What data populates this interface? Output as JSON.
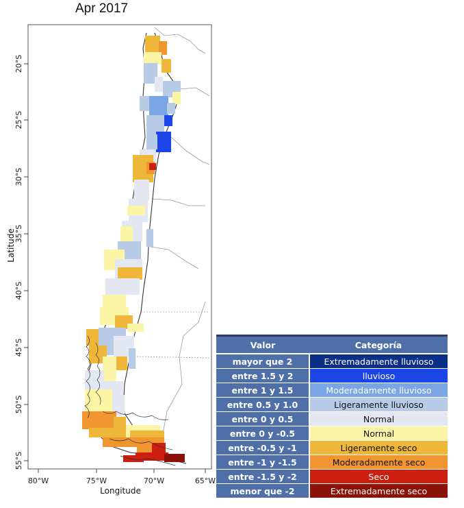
{
  "title": "Apr 2017",
  "axes": {
    "x_label": "Longitude",
    "y_label": "Latitude",
    "x_ticks": [
      "80°W",
      "75°W",
      "70°W",
      "65°W"
    ],
    "y_ticks": [
      "20°S",
      "25°S",
      "30°S",
      "35°S",
      "40°S",
      "45°S",
      "50°S",
      "55°S"
    ]
  },
  "colors": {
    "extremely_wet": "#0b2f86",
    "wet": "#1b45e6",
    "moderately_wet": "#7aa6e6",
    "slightly_wet": "#b7cbe6",
    "normal_wet": "#e2e7f1",
    "normal_dry": "#fdf5a6",
    "slightly_dry": "#efb73a",
    "moderately_dry": "#f0952f",
    "dry": "#cc1f0f",
    "extremely_dry": "#8a1208"
  },
  "legend": {
    "header_value": "Valor",
    "header_category": "Categoría",
    "rows": [
      {
        "value": "mayor que 2",
        "category": "Extremadamente lluvioso",
        "color": "#0b2f86",
        "text_color": "#ffffff"
      },
      {
        "value": "entre 1.5 y 2",
        "category": "lluvioso",
        "color": "#1b45e6",
        "text_color": "#ffffff"
      },
      {
        "value": "entre 1 y 1.5",
        "category": "Moderadamente lluvioso",
        "color": "#7aa6e6",
        "text_color": "#ffffff"
      },
      {
        "value": "entre 0.5 y 1.0",
        "category": "Ligeramente lluvioso",
        "color": "#b7cbe6",
        "text_color": "#111111"
      },
      {
        "value": "entre 0 y 0.5",
        "category": "Normal",
        "color": "#e2e7f1",
        "text_color": "#111111"
      },
      {
        "value": "entre 0 y -0.5",
        "category": "Normal",
        "color": "#fdf5a6",
        "text_color": "#111111"
      },
      {
        "value": "entre -0.5 y -1",
        "category": "Ligeramente seco",
        "color": "#efb73a",
        "text_color": "#111111"
      },
      {
        "value": "entre -1 y -1.5",
        "category": "Moderadamente seco",
        "color": "#f0952f",
        "text_color": "#111111"
      },
      {
        "value": "entre -1.5 y -2",
        "category": "Seco",
        "color": "#cc1f0f",
        "text_color": "#ffffff"
      },
      {
        "value": "menor que -2",
        "category": "Extremadamente seco",
        "color": "#8a1208",
        "text_color": "#ffffff"
      }
    ]
  }
}
